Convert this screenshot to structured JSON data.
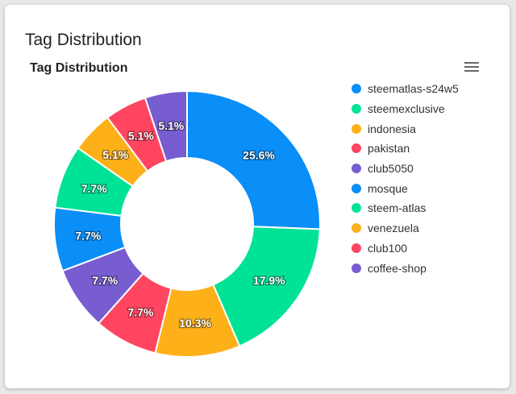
{
  "card": {
    "title": "Tag Distribution"
  },
  "menu_icon": "hamburger-menu-icon",
  "chart_data": {
    "type": "pie",
    "variant": "donut",
    "title": "Tag Distribution",
    "legend_position": "right",
    "slices": [
      {
        "label": "steematlas-s24w5",
        "value": 25.6,
        "display": "25.6%",
        "color": "#0a8ef8"
      },
      {
        "label": "steemexclusive",
        "value": 17.9,
        "display": "17.9%",
        "color": "#00e396"
      },
      {
        "label": "indonesia",
        "value": 10.3,
        "display": "10.3%",
        "color": "#feb019"
      },
      {
        "label": "pakistan",
        "value": 7.7,
        "display": "7.7%",
        "color": "#ff4560"
      },
      {
        "label": "club5050",
        "value": 7.7,
        "display": "7.7%",
        "color": "#775dd0"
      },
      {
        "label": "mosque",
        "value": 7.7,
        "display": "7.7%",
        "color": "#0a8ef8"
      },
      {
        "label": "steem-atlas",
        "value": 7.7,
        "display": "7.7%",
        "color": "#00e396"
      },
      {
        "label": "venezuela",
        "value": 5.1,
        "display": "5.1%",
        "color": "#feb019"
      },
      {
        "label": "club100",
        "value": 5.1,
        "display": "5.1%",
        "color": "#ff4560"
      },
      {
        "label": "coffee-shop",
        "value": 5.1,
        "display": "5.1%",
        "color": "#775dd0"
      }
    ]
  }
}
